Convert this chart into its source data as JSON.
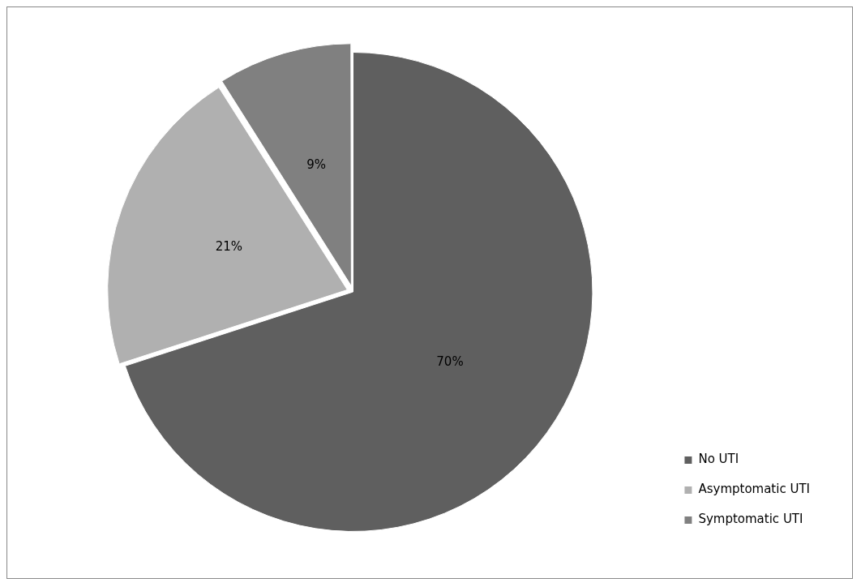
{
  "chart_data": {
    "type": "pie",
    "categories": [
      "No UTI",
      "Asymptomatic UTI",
      "Symptomatic UTI"
    ],
    "values": [
      70,
      21,
      9
    ],
    "colors": [
      "#5f5f5f",
      "#b0b0b0",
      "#808080"
    ],
    "value_labels": [
      "70%",
      "21%",
      "9%"
    ],
    "legend": "bottom right"
  }
}
